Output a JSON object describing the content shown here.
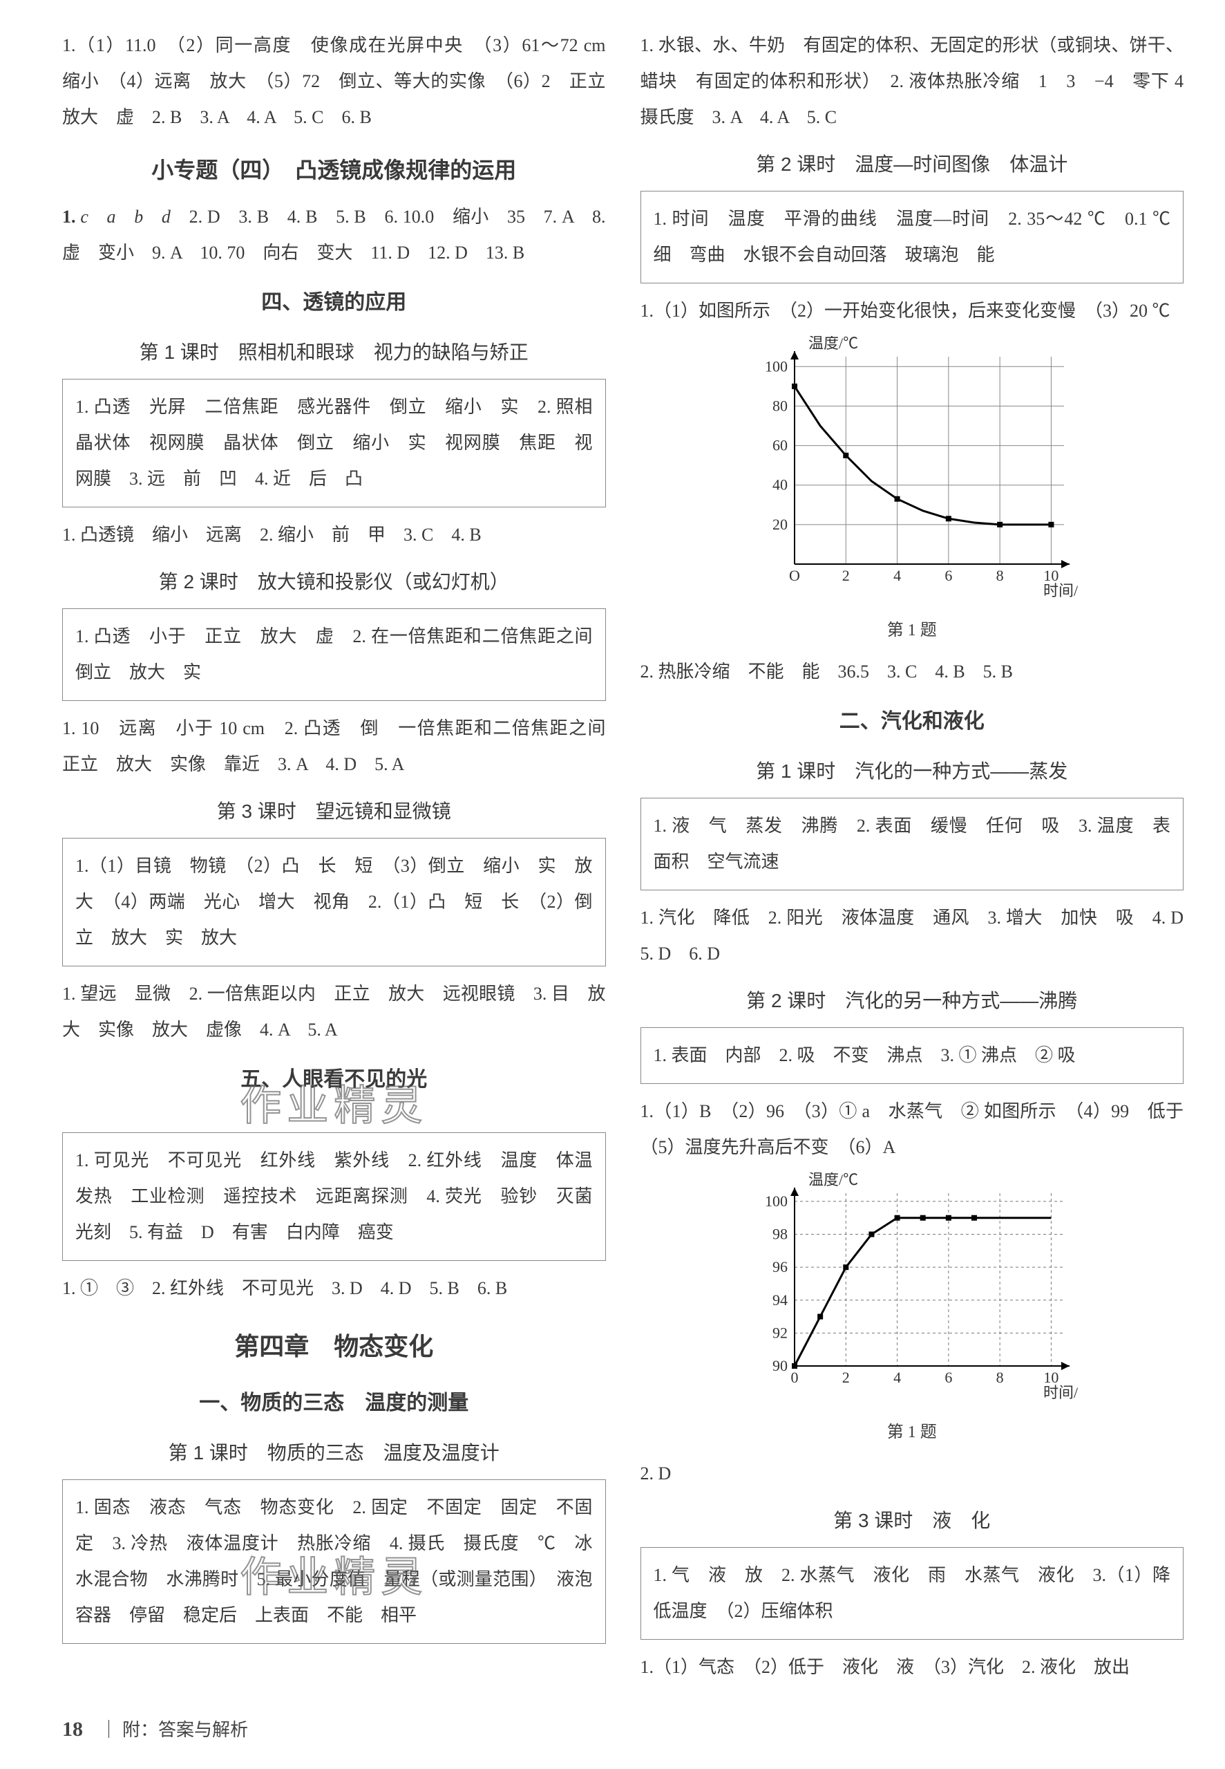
{
  "left": {
    "p1": "1.（1）11.0　（2）同一高度　使像成在光屏中央　（3）61～72 cm　缩小　（4）远离　放大　（5）72　倒立、等大的实像　（6）2　正立　放大　虚　2. B　3. A　4. A　5. C　6. B",
    "topic1": "小专题（四）　凸透镜成像规律的运用",
    "p2a": "1. ",
    "p2b": "c　a　b　d",
    "p2c": "　2. D　3. B　4. B　5. B　6. 10.0　缩小　35　7. A　8. 虚　变小　9. A　10. 70　向右　变大　11. D　12. D　13. B",
    "section1": "四、透镜的应用",
    "lesson1": "第 1 课时　照相机和眼球　视力的缺陷与矫正",
    "box1": "1. 凸透　光屏　二倍焦距　感光器件　倒立　缩小　实　2. 照相　晶状体　视网膜　晶状体　倒立　缩小　实　视网膜　焦距　视网膜　3. 远　前　凹　4. 近　后　凸",
    "p3": "1. 凸透镜　缩小　远离　2. 缩小　前　甲　3. C　4. B",
    "lesson2": "第 2 课时　放大镜和投影仪（或幻灯机）",
    "box2": "1. 凸透　小于　正立　放大　虚　2. 在一倍焦距和二倍焦距之间　倒立　放大　实",
    "p4": "1. 10　远离　小于 10 cm　2. 凸透　倒　一倍焦距和二倍焦距之间　正立　放大　实像　靠近　3. A　4. D　5. A",
    "lesson3": "第 3 课时　望远镜和显微镜",
    "box3": "1.（1）目镜　物镜　（2）凸　长　短　（3）倒立　缩小　实　放大　（4）两端　光心　增大　视角　2.（1）凸　短　长　（2）倒立　放大　实　放大",
    "p5": "1. 望远　显微　2. 一倍焦距以内　正立　放大　远视眼镜　3. 目　放大　实像　放大　虚像　4. A　5. A",
    "section2": "五、人眼看不见的光",
    "box4": "1. 可见光　不可见光　红外线　紫外线　2. 红外线　温度　体温　发热　工业检测　遥控技术　远距离探测　4. 荧光　验钞　灭菌　光刻　5. 有益　D　有害　白内障　癌变",
    "p6": "1. ①　③　2. 红外线　不可见光　3. D　4. D　5. B　6. B",
    "chapter": "第四章　物态变化",
    "section3": "一、物质的三态　温度的测量",
    "lesson4": "第 1 课时　物质的三态　温度及温度计",
    "box5": "1. 固态　液态　气态　物态变化　2. 固定　不固定　固定　不固定　3. 冷热　液体温度计　热胀冷缩　4. 摄氏　摄氏度　℃　冰水混合物　水沸腾时　5. 最小分度值　量程（或测量范围）　液泡　容器　停留　稳定后　上表面　不能　相平",
    "watermark1": "作业精灵",
    "watermark2": "作业精灵"
  },
  "right": {
    "p1": "1. 水银、水、牛奶　有固定的体积、无固定的形状（或铜块、饼干、蜡块　有固定的体积和形状）　2. 液体热胀冷缩　1　3　−4　零下 4 摄氏度　3. A　4. A　5. C",
    "lesson1": "第 2 课时　温度—时间图像　体温计",
    "box1": "1. 时间　温度　平滑的曲线　温度—时间　2. 35～42 ℃　0.1 ℃　细　弯曲　水银不会自动回落　玻璃泡　能",
    "p2": "1.（1）如图所示　（2）一开始变化很快，后来变化变慢　（3）20 ℃",
    "chart1": {
      "ylabel": "温度/℃",
      "xlabel": "时间/min",
      "caption": "第 1 题",
      "xlim": [
        0,
        10.5
      ],
      "ylim": [
        0,
        105
      ],
      "xticks": [
        0,
        2,
        4,
        6,
        8,
        10
      ],
      "xtick_labels": [
        "O",
        "2",
        "4",
        "6",
        "8",
        "10"
      ],
      "yticks": [
        20,
        40,
        60,
        80,
        100
      ],
      "ytick_labels": [
        "20",
        "40",
        "60",
        "80",
        "100"
      ],
      "grid_color": "#888888",
      "line_color": "#000000",
      "line_width": 3,
      "background": "#ffffff",
      "axis_color": "#000000",
      "label_fontsize": 22,
      "points": [
        [
          0,
          90
        ],
        [
          1,
          70
        ],
        [
          2,
          55
        ],
        [
          3,
          42
        ],
        [
          4,
          33
        ],
        [
          5,
          27
        ],
        [
          6,
          23
        ],
        [
          7,
          21
        ],
        [
          8,
          20
        ],
        [
          9,
          20
        ],
        [
          10,
          20
        ]
      ],
      "markers": [
        [
          0,
          90
        ],
        [
          2,
          55
        ],
        [
          4,
          33
        ],
        [
          6,
          23
        ],
        [
          8,
          20
        ],
        [
          10,
          20
        ]
      ],
      "marker_style": "square",
      "marker_size": 8
    },
    "p3": "2. 热胀冷缩　不能　能　36.5　3. C　4. B　5. B",
    "section1": "二、汽化和液化",
    "lesson2": "第 1 课时　汽化的一种方式——蒸发",
    "box2": "1. 液　气　蒸发　沸腾　2. 表面　缓慢　任何　吸　3. 温度　表面积　空气流速",
    "p4": "1. 汽化　降低　2. 阳光　液体温度　通风　3. 增大　加快　吸　4. D　5. D　6. D",
    "lesson3": "第 2 课时　汽化的另一种方式——沸腾",
    "box3": "1. 表面　内部　2. 吸　不变　沸点　3. ① 沸点　② 吸",
    "p5": "1.（1）B　（2）96　（3）① a　水蒸气　② 如图所示　（4）99　低于　（5）温度先升高后不变　（6）A",
    "chart2": {
      "ylabel": "温度/℃",
      "xlabel": "时间/min",
      "caption": "第 1 题",
      "xlim": [
        0,
        10.5
      ],
      "ylim": [
        90,
        100.5
      ],
      "xticks": [
        0,
        2,
        4,
        6,
        8,
        10
      ],
      "xtick_labels": [
        "0",
        "2",
        "4",
        "6",
        "8",
        "10"
      ],
      "yticks": [
        90,
        92,
        94,
        96,
        98,
        100
      ],
      "ytick_labels": [
        "90",
        "92",
        "94",
        "96",
        "98",
        "100"
      ],
      "grid_style": "dashed",
      "grid_color": "#777777",
      "line_color": "#000000",
      "line_width": 3,
      "background": "#ffffff",
      "axis_color": "#000000",
      "label_fontsize": 22,
      "points": [
        [
          0,
          90
        ],
        [
          1,
          93
        ],
        [
          2,
          96
        ],
        [
          3,
          98
        ],
        [
          4,
          99
        ],
        [
          5,
          99
        ],
        [
          6,
          99
        ],
        [
          7,
          99
        ],
        [
          8,
          99
        ],
        [
          9,
          99
        ],
        [
          10,
          99
        ]
      ],
      "markers": [
        [
          0,
          90
        ],
        [
          1,
          93
        ],
        [
          2,
          96
        ],
        [
          3,
          98
        ],
        [
          4,
          99
        ],
        [
          5,
          99
        ],
        [
          6,
          99
        ],
        [
          7,
          99
        ]
      ],
      "marker_style": "square",
      "marker_size": 8
    },
    "p6": "2. D",
    "lesson4": "第 3 课时　液　化",
    "box4": "1. 气　液　放　2. 水蒸气　液化　雨　水蒸气　液化　3.（1）降低温度　（2）压缩体积",
    "p7": "1.（1）气态　（2）低于　液化　液　（3）汽化　2. 液化　放出"
  },
  "footer": {
    "page": "18",
    "label": "附：答案与解析",
    "sep": "｜"
  }
}
